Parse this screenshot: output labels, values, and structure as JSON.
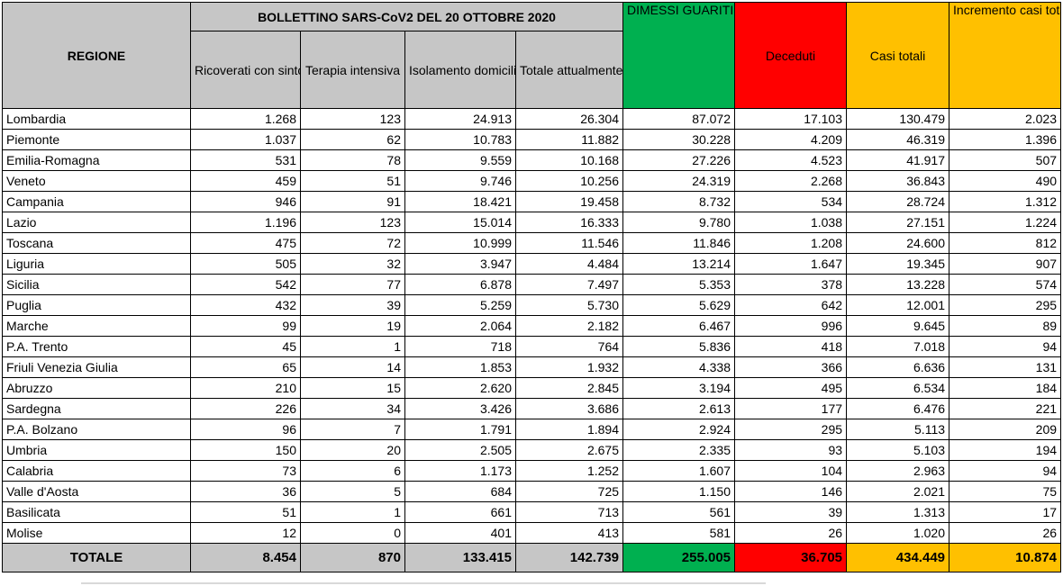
{
  "title": "BOLLETTINO SARS-CoV2 DEL 20 OTTOBRE 2020",
  "headers": {
    "region": "REGIONE",
    "ricoverati": "Ricoverati con sintomi",
    "terapia": "Terapia intensiva",
    "isolamento": "Isolamento domiciliare",
    "totale_positivi": "Totale attualmente positivi",
    "dimessi": "DIMESSI GUARITI",
    "deceduti": "Deceduti",
    "casi_totali": "Casi totali",
    "incremento": "Incremento casi totali (rispetto al giorno precedente)"
  },
  "colors": {
    "header_gray": "#c6c6c6",
    "green": "#00b050",
    "red": "#ff0000",
    "orange": "#ffc000"
  },
  "rows": [
    [
      "Lombardia",
      "1.268",
      "123",
      "24.913",
      "26.304",
      "87.072",
      "17.103",
      "130.479",
      "2.023"
    ],
    [
      "Piemonte",
      "1.037",
      "62",
      "10.783",
      "11.882",
      "30.228",
      "4.209",
      "46.319",
      "1.396"
    ],
    [
      "Emilia-Romagna",
      "531",
      "78",
      "9.559",
      "10.168",
      "27.226",
      "4.523",
      "41.917",
      "507"
    ],
    [
      "Veneto",
      "459",
      "51",
      "9.746",
      "10.256",
      "24.319",
      "2.268",
      "36.843",
      "490"
    ],
    [
      "Campania",
      "946",
      "91",
      "18.421",
      "19.458",
      "8.732",
      "534",
      "28.724",
      "1.312"
    ],
    [
      "Lazio",
      "1.196",
      "123",
      "15.014",
      "16.333",
      "9.780",
      "1.038",
      "27.151",
      "1.224"
    ],
    [
      "Toscana",
      "475",
      "72",
      "10.999",
      "11.546",
      "11.846",
      "1.208",
      "24.600",
      "812"
    ],
    [
      "Liguria",
      "505",
      "32",
      "3.947",
      "4.484",
      "13.214",
      "1.647",
      "19.345",
      "907"
    ],
    [
      "Sicilia",
      "542",
      "77",
      "6.878",
      "7.497",
      "5.353",
      "378",
      "13.228",
      "574"
    ],
    [
      "Puglia",
      "432",
      "39",
      "5.259",
      "5.730",
      "5.629",
      "642",
      "12.001",
      "295"
    ],
    [
      "Marche",
      "99",
      "19",
      "2.064",
      "2.182",
      "6.467",
      "996",
      "9.645",
      "89"
    ],
    [
      "P.A. Trento",
      "45",
      "1",
      "718",
      "764",
      "5.836",
      "418",
      "7.018",
      "94"
    ],
    [
      "Friuli Venezia Giulia",
      "65",
      "14",
      "1.853",
      "1.932",
      "4.338",
      "366",
      "6.636",
      "131"
    ],
    [
      "Abruzzo",
      "210",
      "15",
      "2.620",
      "2.845",
      "3.194",
      "495",
      "6.534",
      "184"
    ],
    [
      "Sardegna",
      "226",
      "34",
      "3.426",
      "3.686",
      "2.613",
      "177",
      "6.476",
      "221"
    ],
    [
      "P.A. Bolzano",
      "96",
      "7",
      "1.791",
      "1.894",
      "2.924",
      "295",
      "5.113",
      "209"
    ],
    [
      "Umbria",
      "150",
      "20",
      "2.505",
      "2.675",
      "2.335",
      "93",
      "5.103",
      "194"
    ],
    [
      "Calabria",
      "73",
      "6",
      "1.173",
      "1.252",
      "1.607",
      "104",
      "2.963",
      "94"
    ],
    [
      "Valle d'Aosta",
      "36",
      "5",
      "684",
      "725",
      "1.150",
      "146",
      "2.021",
      "75"
    ],
    [
      "Basilicata",
      "51",
      "1",
      "661",
      "713",
      "561",
      "39",
      "1.313",
      "17"
    ],
    [
      "Molise",
      "12",
      "0",
      "401",
      "413",
      "581",
      "26",
      "1.020",
      "26"
    ]
  ],
  "totals": {
    "label": "TOTALE",
    "ricoverati": "8.454",
    "terapia": "870",
    "isolamento": "133.415",
    "totale_positivi": "142.739",
    "dimessi": "255.005",
    "deceduti": "36.705",
    "casi_totali": "434.449",
    "incremento": "10.874"
  }
}
